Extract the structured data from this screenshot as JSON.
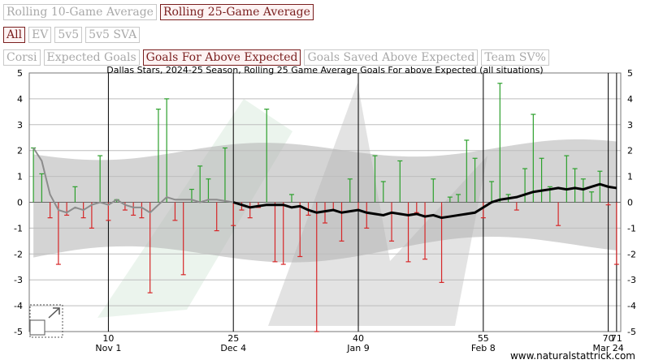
{
  "window_buttons": [
    {
      "label": "Rolling 10-Game Average",
      "active": false
    },
    {
      "label": "Rolling 25-Game Average",
      "active": true
    }
  ],
  "strength_buttons": [
    {
      "label": "All",
      "active": true
    },
    {
      "label": "EV",
      "active": false
    },
    {
      "label": "5v5",
      "active": false
    },
    {
      "label": "5v5 SVA",
      "active": false
    }
  ],
  "metric_buttons": [
    {
      "label": "Corsi",
      "active": false
    },
    {
      "label": "Expected Goals",
      "active": false
    },
    {
      "label": "Goals For Above Expected",
      "active": true
    },
    {
      "label": "Goals Saved Above Expected",
      "active": false
    },
    {
      "label": "Team SV%",
      "active": false
    }
  ],
  "watermark": "www.naturalstattrick.com",
  "colors": {
    "accent": "#7a1f1f",
    "positive": "#2ca02c",
    "negative": "#d62728",
    "line": "#000000",
    "band": "#b0b0b0"
  },
  "chart_data": {
    "type": "line",
    "title": "Dallas Stars, 2024-25 Season, Rolling 25 Game Average Goals For above Expected (all situations)",
    "ylim": [
      -5,
      5
    ],
    "yticks": [
      -5,
      -4,
      -3,
      -2,
      -1,
      0,
      1,
      2,
      3,
      4,
      5
    ],
    "xlim": [
      0.5,
      71.5
    ],
    "xticks": [
      {
        "x": 10,
        "label": "10",
        "date": "Nov 1"
      },
      {
        "x": 25,
        "label": "25",
        "date": "Dec 4"
      },
      {
        "x": 40,
        "label": "40",
        "date": "Jan 9"
      },
      {
        "x": 55,
        "label": "55",
        "date": "Feb 8"
      },
      {
        "x": 70,
        "label": "70",
        "date": "Mar 24"
      },
      {
        "x": 71,
        "label": "71",
        "date": ""
      }
    ],
    "game_values": [
      2.1,
      1.1,
      -0.6,
      -2.4,
      -0.5,
      0.6,
      -0.6,
      -1.0,
      1.8,
      -0.7,
      0.1,
      -0.3,
      -0.5,
      -0.6,
      -3.5,
      3.6,
      4.0,
      -0.7,
      -2.8,
      0.5,
      1.4,
      0.9,
      -1.1,
      2.1,
      -0.9,
      -0.3,
      -0.6,
      -0.2,
      3.6,
      -2.3,
      -2.4,
      0.3,
      -2.1,
      -0.5,
      -5.0,
      -0.8,
      -0.3,
      -1.5,
      0.9,
      -0.3,
      -1.0,
      1.8,
      0.8,
      -1.5,
      1.6,
      -2.3,
      -0.4,
      -2.2,
      0.9,
      -3.1,
      0.2,
      0.3,
      2.4,
      1.7,
      -0.6,
      0.8,
      4.6,
      0.3,
      -0.3,
      1.3,
      3.4,
      1.7,
      0.6,
      -0.9,
      1.8,
      1.3,
      0.9,
      0.4,
      1.2,
      -0.1,
      -2.4
    ],
    "series": [
      {
        "name": "Rolling 10-Game Average",
        "x": [
          1,
          2,
          3,
          4,
          5,
          6,
          7,
          8,
          9,
          10,
          11,
          12,
          13,
          14,
          15,
          16,
          17,
          18,
          19,
          20,
          21,
          22,
          23,
          24,
          25
        ],
        "values": [
          2.1,
          1.6,
          0.3,
          -0.3,
          -0.4,
          -0.2,
          -0.3,
          -0.1,
          0.0,
          -0.1,
          0.1,
          -0.1,
          -0.2,
          -0.2,
          -0.4,
          -0.1,
          0.2,
          0.1,
          0.1,
          0.1,
          0.0,
          0.1,
          0.1,
          0.05,
          0.0
        ]
      },
      {
        "name": "Rolling 25-Game Average",
        "x": [
          25,
          26,
          27,
          28,
          29,
          30,
          31,
          32,
          33,
          34,
          35,
          36,
          37,
          38,
          39,
          40,
          41,
          42,
          43,
          44,
          45,
          46,
          47,
          48,
          49,
          50,
          51,
          52,
          53,
          54,
          55,
          56,
          57,
          58,
          59,
          60,
          61,
          62,
          63,
          64,
          65,
          66,
          67,
          68,
          69,
          70,
          71
        ],
        "values": [
          0.0,
          -0.1,
          -0.2,
          -0.15,
          -0.1,
          -0.1,
          -0.1,
          -0.2,
          -0.15,
          -0.3,
          -0.4,
          -0.35,
          -0.3,
          -0.4,
          -0.35,
          -0.3,
          -0.4,
          -0.45,
          -0.5,
          -0.4,
          -0.45,
          -0.5,
          -0.45,
          -0.55,
          -0.5,
          -0.6,
          -0.55,
          -0.5,
          -0.45,
          -0.4,
          -0.2,
          0.0,
          0.1,
          0.15,
          0.2,
          0.3,
          0.4,
          0.45,
          0.5,
          0.55,
          0.5,
          0.55,
          0.5,
          0.6,
          0.7,
          0.6,
          0.55
        ]
      }
    ],
    "xlabel": "",
    "ylabel": "",
    "grid": true
  }
}
